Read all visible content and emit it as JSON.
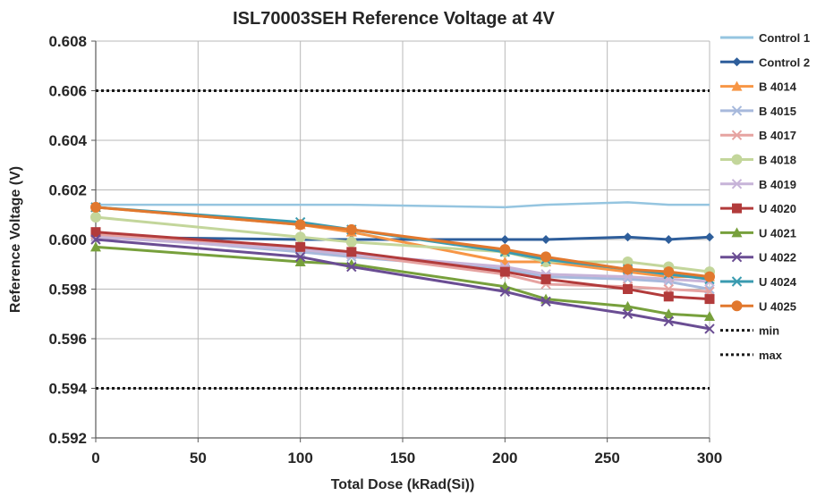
{
  "chart_data": {
    "type": "line",
    "title": "ISL70003SEH Reference Voltage at 4V",
    "xlabel": "Total Dose (kRad(Si))",
    "ylabel": "Reference Voltage (V)",
    "xlim": [
      0,
      300
    ],
    "ylim": [
      0.592,
      0.608
    ],
    "x_ticks": [
      0,
      50,
      100,
      150,
      200,
      250,
      300
    ],
    "y_ticks": [
      0.592,
      0.594,
      0.596,
      0.598,
      0.6,
      0.602,
      0.604,
      0.606,
      0.608
    ],
    "x_tick_labels": [
      "0",
      "50",
      "100",
      "150",
      "200",
      "250",
      "300"
    ],
    "y_tick_labels": [
      "0.592",
      "0.594",
      "0.596",
      "0.598",
      "0.600",
      "0.602",
      "0.604",
      "0.606",
      "0.608"
    ],
    "grid": true,
    "legend_position": "right",
    "x": [
      0,
      100,
      125,
      200,
      220,
      260,
      280,
      300
    ],
    "series": [
      {
        "name": "Control 1",
        "color": "#95c5e0",
        "marker": "none",
        "values": [
          0.6014,
          0.6014,
          0.6014,
          0.6013,
          0.6014,
          0.6015,
          0.6014,
          0.6014
        ]
      },
      {
        "name": "Control 2",
        "color": "#2e5e9b",
        "marker": "diamond",
        "values": [
          0.6001,
          0.6,
          0.6,
          0.6,
          0.6,
          0.6001,
          0.6,
          0.6001
        ]
      },
      {
        "name": "B 4014",
        "color": "#f79646",
        "marker": "triangle",
        "values": [
          0.6013,
          0.6006,
          0.6003,
          0.5991,
          0.5991,
          0.5987,
          0.5985,
          0.5985
        ]
      },
      {
        "name": "B 4015",
        "color": "#a7b9dc",
        "marker": "x",
        "values": [
          0.6002,
          0.5995,
          0.5993,
          0.5988,
          0.5985,
          0.5984,
          0.5983,
          0.598
        ]
      },
      {
        "name": "B 4017",
        "color": "#e6a3a1",
        "marker": "x",
        "values": [
          0.6002,
          0.5996,
          0.5994,
          0.5986,
          0.5982,
          0.5981,
          0.598,
          0.5979
        ]
      },
      {
        "name": "B 4018",
        "color": "#c3d69b",
        "marker": "circle",
        "values": [
          0.6009,
          0.6001,
          0.5999,
          0.5995,
          0.5991,
          0.5991,
          0.5989,
          0.5987
        ]
      },
      {
        "name": "B 4019",
        "color": "#c7b4d8",
        "marker": "x",
        "values": [
          0.6001,
          0.5996,
          0.5994,
          0.5989,
          0.5986,
          0.5985,
          0.5984,
          0.5983
        ]
      },
      {
        "name": "U 4020",
        "color": "#b23b3b",
        "marker": "square",
        "values": [
          0.6003,
          0.5997,
          0.5995,
          0.5987,
          0.5984,
          0.598,
          0.5977,
          0.5976
        ]
      },
      {
        "name": "U 4021",
        "color": "#77a03c",
        "marker": "triangle",
        "values": [
          0.5997,
          0.5991,
          0.599,
          0.5981,
          0.5976,
          0.5973,
          0.597,
          0.5969
        ]
      },
      {
        "name": "U 4022",
        "color": "#6a4d93",
        "marker": "x",
        "values": [
          0.6,
          0.5993,
          0.5989,
          0.5979,
          0.5975,
          0.597,
          0.5967,
          0.5964
        ]
      },
      {
        "name": "U 4024",
        "color": "#3a9bb0",
        "marker": "x",
        "values": [
          0.6013,
          0.6007,
          0.6004,
          0.5995,
          0.5992,
          0.5988,
          0.5986,
          0.5984
        ]
      },
      {
        "name": "U 4025",
        "color": "#e1782e",
        "marker": "circle",
        "values": [
          0.6013,
          0.6006,
          0.6004,
          0.5996,
          0.5993,
          0.5988,
          0.5987,
          0.5985
        ]
      }
    ],
    "reference_lines": [
      {
        "name": "min",
        "color": "#1a1a1a",
        "style": "dotted",
        "value": 0.594
      },
      {
        "name": "max",
        "color": "#1a1a1a",
        "style": "dotted",
        "value": 0.606
      }
    ]
  }
}
